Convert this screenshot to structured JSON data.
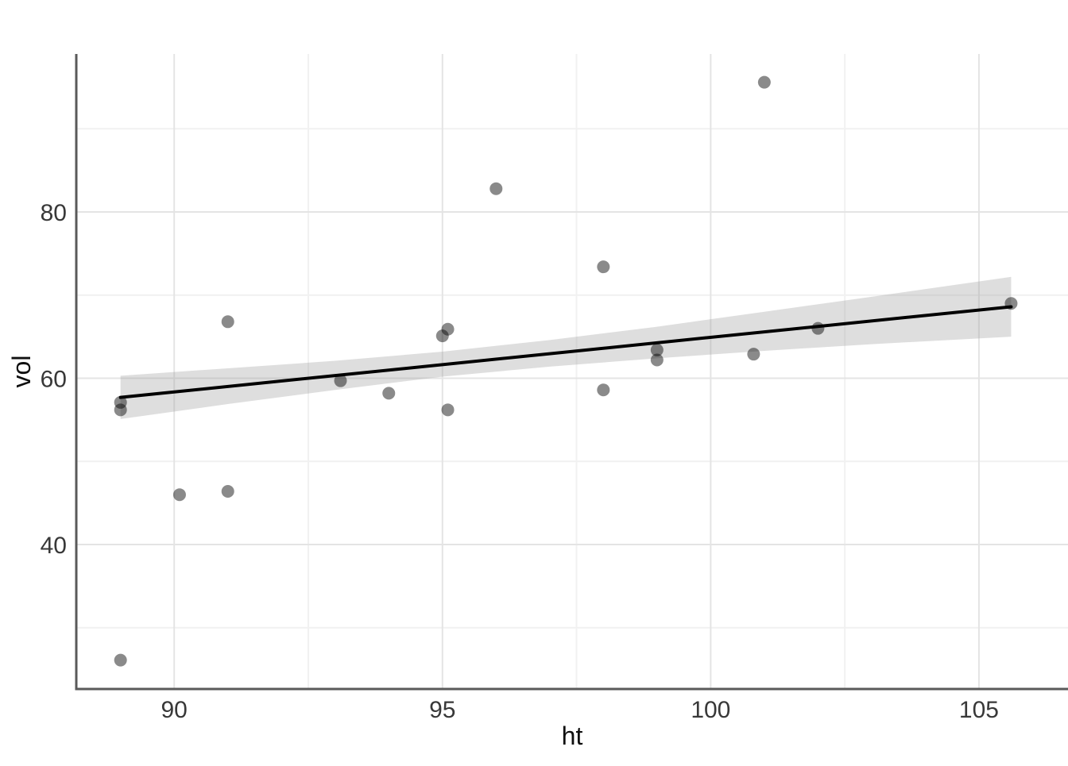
{
  "chart_data": {
    "type": "scatter",
    "title": "",
    "xlabel": "ht",
    "ylabel": "vol",
    "x_ticks": [
      90,
      95,
      100,
      105
    ],
    "y_ticks": [
      40,
      60,
      80
    ],
    "xlim": [
      88.19,
      106.66
    ],
    "ylim": [
      22.63,
      99.0
    ],
    "grid": "major and minor gridlines, white background, left and bottom axis lines, no tick marks",
    "legend": "none",
    "points": [
      [
        89.0,
        26.1
      ],
      [
        89.0,
        57.1
      ],
      [
        89.0,
        56.2
      ],
      [
        90.1,
        46.0
      ],
      [
        91.0,
        46.4
      ],
      [
        91.0,
        66.8
      ],
      [
        93.1,
        59.7
      ],
      [
        94.0,
        58.2
      ],
      [
        95.0,
        65.1
      ],
      [
        95.1,
        65.9
      ],
      [
        95.1,
        56.2
      ],
      [
        96.0,
        82.8
      ],
      [
        98.0,
        73.4
      ],
      [
        98.0,
        58.6
      ],
      [
        99.0,
        63.4
      ],
      [
        99.0,
        62.2
      ],
      [
        100.8,
        62.9
      ],
      [
        101.0,
        95.6
      ],
      [
        102.0,
        66.0
      ],
      [
        105.6,
        69.0
      ]
    ],
    "smooth_line": {
      "x1": 89.0,
      "y1": 57.7,
      "x2": 105.6,
      "y2": 68.6
    },
    "confidence_band": [
      {
        "x": 89.0,
        "lower": 55.1,
        "upper": 60.3
      },
      {
        "x": 91.0,
        "lower": 56.9,
        "upper": 61.2
      },
      {
        "x": 93.0,
        "lower": 58.6,
        "upper": 62.1
      },
      {
        "x": 95.0,
        "lower": 60.2,
        "upper": 63.2
      },
      {
        "x": 97.0,
        "lower": 61.4,
        "upper": 64.6
      },
      {
        "x": 99.0,
        "lower": 62.4,
        "upper": 66.2
      },
      {
        "x": 101.0,
        "lower": 63.3,
        "upper": 68.0
      },
      {
        "x": 103.0,
        "lower": 64.1,
        "upper": 69.8
      },
      {
        "x": 105.6,
        "lower": 65.0,
        "upper": 72.2
      }
    ],
    "colors": {
      "background": "#ffffff",
      "grid_major": "#e4e4e4",
      "grid_minor": "#f1f1f1",
      "axis_line": "#5a5a5a",
      "point": "rgba(0,0,0,0.46)",
      "smooth_line": "#000000",
      "band_fill": "#9b9b9b",
      "band_opacity": "0.33",
      "tick_label": "#383838",
      "axis_title": "#0f0f0f"
    }
  }
}
